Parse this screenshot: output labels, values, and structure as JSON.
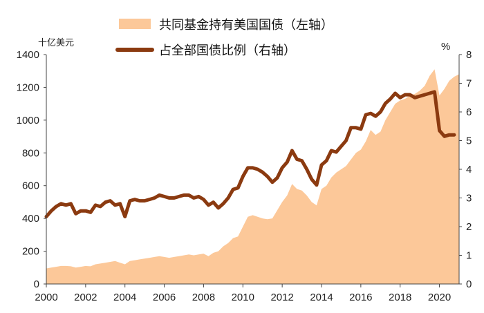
{
  "chart_data": {
    "type": "area+line",
    "legend": {
      "placement": "top",
      "entries": [
        "共同基金持有美国国债（左轴）",
        "占全部国债比例（右轴）"
      ]
    },
    "left_axis": {
      "unit": "十亿美元",
      "range": [
        0,
        1400
      ],
      "ticks": [
        "0",
        "200",
        "400",
        "600",
        "800",
        "1000",
        "1200",
        "1400"
      ]
    },
    "right_axis": {
      "unit": "%",
      "range": [
        0,
        8
      ],
      "ticks": [
        "0",
        "1",
        "2",
        "3",
        "4",
        "5",
        "6",
        "7",
        "8"
      ]
    },
    "x_axis": {
      "range": [
        2000,
        2021
      ],
      "ticks": [
        "2000",
        "2002",
        "2004",
        "2006",
        "2008",
        "2010",
        "2012",
        "2014",
        "2016",
        "2018",
        "2020"
      ]
    },
    "grid": false,
    "colors": {
      "area": "#FCC899",
      "line": "#8B3A10"
    },
    "series": [
      {
        "name": "共同基金持有美国国债（左轴）",
        "axis": "left",
        "style": "area",
        "points": [
          [
            2000.0,
            95
          ],
          [
            2000.25,
            100
          ],
          [
            2000.5,
            105
          ],
          [
            2000.75,
            110
          ],
          [
            2001.0,
            110
          ],
          [
            2001.25,
            108
          ],
          [
            2001.5,
            100
          ],
          [
            2001.75,
            105
          ],
          [
            2002.0,
            110
          ],
          [
            2002.25,
            108
          ],
          [
            2002.5,
            120
          ],
          [
            2002.75,
            125
          ],
          [
            2003.0,
            130
          ],
          [
            2003.25,
            135
          ],
          [
            2003.5,
            140
          ],
          [
            2003.75,
            130
          ],
          [
            2004.0,
            120
          ],
          [
            2004.25,
            140
          ],
          [
            2004.5,
            145
          ],
          [
            2004.75,
            150
          ],
          [
            2005.0,
            155
          ],
          [
            2005.25,
            160
          ],
          [
            2005.5,
            165
          ],
          [
            2005.75,
            170
          ],
          [
            2006.0,
            165
          ],
          [
            2006.25,
            160
          ],
          [
            2006.5,
            165
          ],
          [
            2006.75,
            170
          ],
          [
            2007.0,
            175
          ],
          [
            2007.25,
            180
          ],
          [
            2007.5,
            175
          ],
          [
            2007.75,
            180
          ],
          [
            2008.0,
            185
          ],
          [
            2008.25,
            170
          ],
          [
            2008.5,
            190
          ],
          [
            2008.75,
            200
          ],
          [
            2009.0,
            230
          ],
          [
            2009.25,
            250
          ],
          [
            2009.5,
            280
          ],
          [
            2009.75,
            290
          ],
          [
            2010.0,
            350
          ],
          [
            2010.25,
            410
          ],
          [
            2010.5,
            420
          ],
          [
            2010.75,
            410
          ],
          [
            2011.0,
            400
          ],
          [
            2011.25,
            395
          ],
          [
            2011.5,
            400
          ],
          [
            2011.75,
            450
          ],
          [
            2012.0,
            500
          ],
          [
            2012.25,
            540
          ],
          [
            2012.5,
            610
          ],
          [
            2012.75,
            580
          ],
          [
            2013.0,
            570
          ],
          [
            2013.25,
            540
          ],
          [
            2013.5,
            500
          ],
          [
            2013.75,
            480
          ],
          [
            2014.0,
            580
          ],
          [
            2014.25,
            600
          ],
          [
            2014.5,
            650
          ],
          [
            2014.75,
            680
          ],
          [
            2015.0,
            700
          ],
          [
            2015.25,
            720
          ],
          [
            2015.5,
            760
          ],
          [
            2015.75,
            800
          ],
          [
            2016.0,
            820
          ],
          [
            2016.25,
            870
          ],
          [
            2016.5,
            940
          ],
          [
            2016.75,
            910
          ],
          [
            2017.0,
            930
          ],
          [
            2017.25,
            1000
          ],
          [
            2017.5,
            1050
          ],
          [
            2017.75,
            1100
          ],
          [
            2018.0,
            1120
          ],
          [
            2018.25,
            1130
          ],
          [
            2018.5,
            1150
          ],
          [
            2018.75,
            1160
          ],
          [
            2019.0,
            1180
          ],
          [
            2019.25,
            1210
          ],
          [
            2019.5,
            1270
          ],
          [
            2019.75,
            1310
          ],
          [
            2020.0,
            1150
          ],
          [
            2020.25,
            1190
          ],
          [
            2020.5,
            1240
          ],
          [
            2020.75,
            1265
          ],
          [
            2021.0,
            1280
          ]
        ]
      },
      {
        "name": "占全部国债比例（右轴）",
        "axis": "right",
        "style": "line",
        "points": [
          [
            2000.0,
            2.35
          ],
          [
            2000.25,
            2.55
          ],
          [
            2000.5,
            2.7
          ],
          [
            2000.75,
            2.8
          ],
          [
            2001.0,
            2.75
          ],
          [
            2001.25,
            2.8
          ],
          [
            2001.5,
            2.45
          ],
          [
            2001.75,
            2.55
          ],
          [
            2002.0,
            2.55
          ],
          [
            2002.25,
            2.5
          ],
          [
            2002.5,
            2.75
          ],
          [
            2002.75,
            2.7
          ],
          [
            2003.0,
            2.85
          ],
          [
            2003.25,
            2.9
          ],
          [
            2003.5,
            2.75
          ],
          [
            2003.75,
            2.8
          ],
          [
            2004.0,
            2.35
          ],
          [
            2004.25,
            2.9
          ],
          [
            2004.5,
            2.95
          ],
          [
            2004.75,
            2.9
          ],
          [
            2005.0,
            2.9
          ],
          [
            2005.25,
            2.95
          ],
          [
            2005.5,
            3.0
          ],
          [
            2005.75,
            3.1
          ],
          [
            2006.0,
            3.05
          ],
          [
            2006.25,
            3.0
          ],
          [
            2006.5,
            3.0
          ],
          [
            2006.75,
            3.05
          ],
          [
            2007.0,
            3.1
          ],
          [
            2007.25,
            3.1
          ],
          [
            2007.5,
            3.0
          ],
          [
            2007.75,
            3.05
          ],
          [
            2008.0,
            2.95
          ],
          [
            2008.25,
            2.75
          ],
          [
            2008.5,
            2.85
          ],
          [
            2008.75,
            2.65
          ],
          [
            2009.0,
            2.8
          ],
          [
            2009.25,
            3.0
          ],
          [
            2009.5,
            3.3
          ],
          [
            2009.75,
            3.35
          ],
          [
            2010.0,
            3.75
          ],
          [
            2010.25,
            4.05
          ],
          [
            2010.5,
            4.05
          ],
          [
            2010.75,
            4.0
          ],
          [
            2011.0,
            3.9
          ],
          [
            2011.25,
            3.75
          ],
          [
            2011.5,
            3.55
          ],
          [
            2011.75,
            3.7
          ],
          [
            2012.0,
            4.05
          ],
          [
            2012.25,
            4.25
          ],
          [
            2012.5,
            4.65
          ],
          [
            2012.75,
            4.35
          ],
          [
            2013.0,
            4.3
          ],
          [
            2013.25,
            4.0
          ],
          [
            2013.5,
            3.65
          ],
          [
            2013.75,
            3.45
          ],
          [
            2014.0,
            4.15
          ],
          [
            2014.25,
            4.3
          ],
          [
            2014.5,
            4.65
          ],
          [
            2014.75,
            4.6
          ],
          [
            2015.0,
            4.8
          ],
          [
            2015.25,
            5.0
          ],
          [
            2015.5,
            5.45
          ],
          [
            2015.75,
            5.45
          ],
          [
            2016.0,
            5.4
          ],
          [
            2016.25,
            5.9
          ],
          [
            2016.5,
            5.95
          ],
          [
            2016.75,
            5.85
          ],
          [
            2017.0,
            6.0
          ],
          [
            2017.25,
            6.3
          ],
          [
            2017.5,
            6.45
          ],
          [
            2017.75,
            6.65
          ],
          [
            2018.0,
            6.5
          ],
          [
            2018.25,
            6.6
          ],
          [
            2018.5,
            6.6
          ],
          [
            2018.75,
            6.5
          ],
          [
            2019.0,
            6.55
          ],
          [
            2019.25,
            6.6
          ],
          [
            2019.5,
            6.65
          ],
          [
            2019.75,
            6.7
          ],
          [
            2020.0,
            5.35
          ],
          [
            2020.25,
            5.15
          ],
          [
            2020.5,
            5.2
          ],
          [
            2020.75,
            5.2
          ]
        ]
      }
    ]
  }
}
